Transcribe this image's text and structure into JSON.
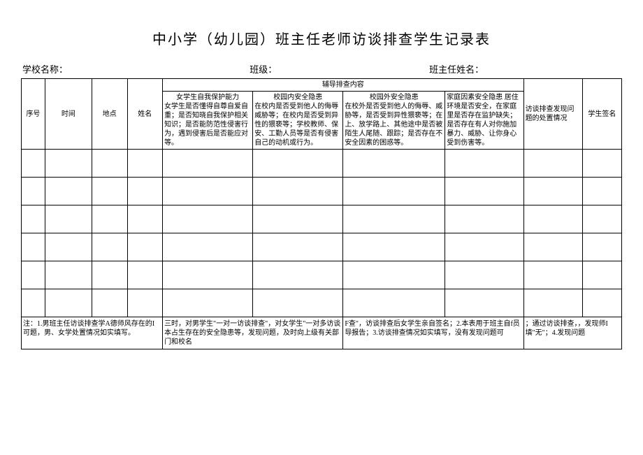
{
  "title": "中小学（幼儿园）班主任老师访谈排查学生记录表",
  "header": {
    "school_label": "学校名称：",
    "class_label": "班级：",
    "teacher_label": "班主任姓名："
  },
  "columns": {
    "seq": "序号",
    "time": "时间",
    "place": "地点",
    "name": "姓名",
    "content_group": "辅导排查内容",
    "content1_title": "女学生自我保护能力",
    "content1_desc": "女学生是否懂得自尊自爱自重；是否知晓自我保护相关知识；是否能防范性侵害行为，遇到侵害后是否能应对等。",
    "content2_title": "校园内安全隐患",
    "content2_desc": "在校内是否受到他人的侮辱威胁等；在校内是否受到异性的猥亵等；学校教师、保安、工勤人员等是否有侵害自己的动机或行为。",
    "content3_title": "校园外安全隐患",
    "content3_desc": "在校外是否受到他人的侮辱、威胁等，是否受到异性猥亵等；在上、放学路上、其他途中是否被陌生人尾随、跟踪；是否存在不安全因素的困惑等。",
    "content4_title": "家庭因素安全隐患",
    "content4_desc": "居住环境是否安全，在家庭里是否存在监护缺失；是否存在有人对你施加暴力、威胁、让你身心受到伤害等。",
    "handle": "访谈排查发现问题的处置情况",
    "sign": "学生签名"
  },
  "notes": {
    "cell1": "注：1.男班主任访谈排查学A德师风存在的I可题，男、女学处置情况如实填写。",
    "cell2": "三时，对男学生\"一对一访谈排查\"，对女学生\"一对多访谈本占生存在的安全隐患等，发现问题，及时向上级有关部门和校名",
    "cell3": "F查\"，访谈排查后女学生亲自签名；2.本表用于班主自f员导报告；3.访谈排查情况如实填写，没有发现问题可",
    "cell4": "；通过访谈排查，，发现师I填\"无\"；4.发现问题"
  },
  "styling": {
    "title_fontsize": 20,
    "header_fontsize": 13,
    "cell_fontsize": 10,
    "border_color": "#000000",
    "background": "#ffffff",
    "font_family": "SimSun",
    "empty_data_rows": 6,
    "data_row_height": 40
  }
}
